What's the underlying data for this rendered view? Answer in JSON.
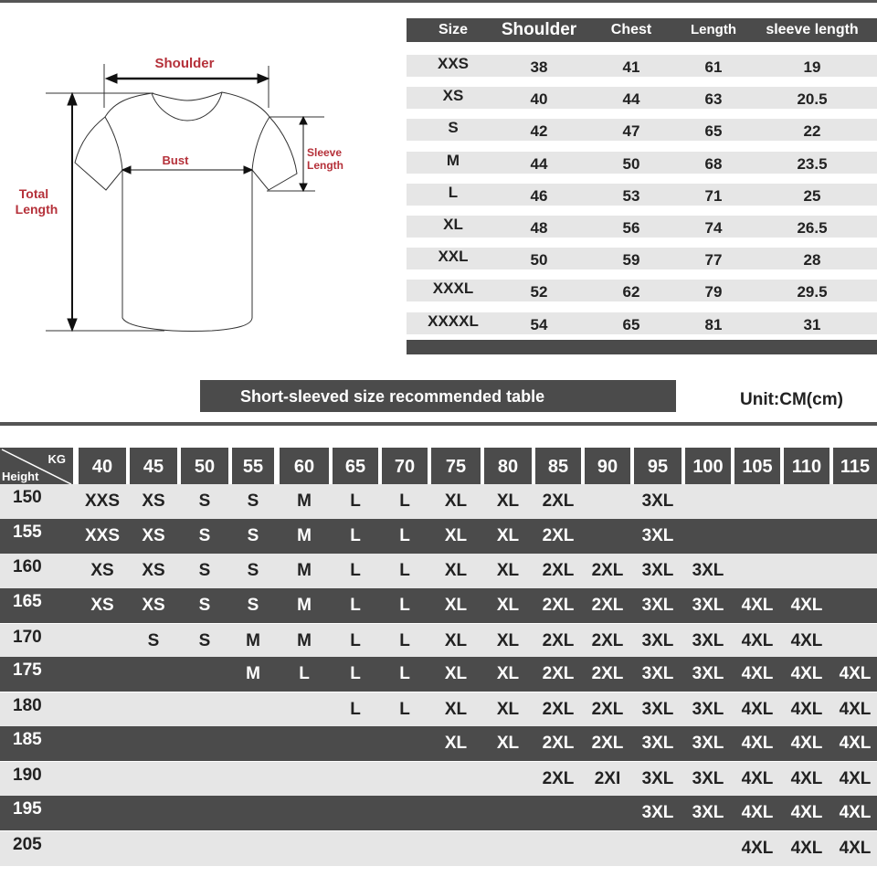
{
  "diagram": {
    "shoulder": "Shoulder",
    "bust": "Bust",
    "sleeve": [
      "Sleeve",
      "Length"
    ],
    "total": [
      "Total",
      "Length"
    ]
  },
  "size_table": {
    "headers": [
      "Size",
      "Shoulder",
      "Chest",
      "Length",
      "sleeve length"
    ],
    "rows": [
      [
        "XXS",
        "38",
        "41",
        "61",
        "19"
      ],
      [
        "XS",
        "40",
        "44",
        "63",
        "20.5"
      ],
      [
        "S",
        "42",
        "47",
        "65",
        "22"
      ],
      [
        "M",
        "44",
        "50",
        "68",
        "23.5"
      ],
      [
        "L",
        "46",
        "53",
        "71",
        "25"
      ],
      [
        "XL",
        "48",
        "56",
        "74",
        "26.5"
      ],
      [
        "XXL",
        "50",
        "59",
        "77",
        "28"
      ],
      [
        "XXXL",
        "52",
        "62",
        "79",
        "29.5"
      ],
      [
        "XXXXL",
        "54",
        "65",
        "81",
        "31"
      ]
    ]
  },
  "banner": {
    "title": "Short-sleeved size recommended table",
    "unit": "Unit:CM(cm)"
  },
  "recommend_table": {
    "corner": {
      "kg": "KG",
      "height": "Height"
    },
    "weights": [
      "40",
      "45",
      "50",
      "55",
      "60",
      "65",
      "70",
      "75",
      "80",
      "85",
      "90",
      "95",
      "100",
      "105",
      "110",
      "115"
    ],
    "rows": [
      {
        "height": "150",
        "sizes": [
          "XXS",
          "XS",
          "S",
          "S",
          "M",
          "L",
          "L",
          "XL",
          "XL",
          "2XL",
          "",
          "3XL",
          "",
          "",
          "",
          ""
        ]
      },
      {
        "height": "155",
        "sizes": [
          "XXS",
          "XS",
          "S",
          "S",
          "M",
          "L",
          "L",
          "XL",
          "XL",
          "2XL",
          "",
          "3XL",
          "",
          "",
          "",
          ""
        ]
      },
      {
        "height": "160",
        "sizes": [
          "XS",
          "XS",
          "S",
          "S",
          "M",
          "L",
          "L",
          "XL",
          "XL",
          "2XL",
          "2XL",
          "3XL",
          "3XL",
          "",
          "",
          ""
        ]
      },
      {
        "height": "165",
        "sizes": [
          "XS",
          "XS",
          "S",
          "S",
          "M",
          "L",
          "L",
          "XL",
          "XL",
          "2XL",
          "2XL",
          "3XL",
          "3XL",
          "4XL",
          "4XL",
          ""
        ]
      },
      {
        "height": "170",
        "sizes": [
          "",
          "S",
          "S",
          "M",
          "M",
          "L",
          "L",
          "XL",
          "XL",
          "2XL",
          "2XL",
          "3XL",
          "3XL",
          "4XL",
          "4XL",
          ""
        ]
      },
      {
        "height": "175",
        "sizes": [
          "",
          "",
          "",
          "M",
          "L",
          "L",
          "L",
          "XL",
          "XL",
          "2XL",
          "2XL",
          "3XL",
          "3XL",
          "4XL",
          "4XL",
          "4XL"
        ]
      },
      {
        "height": "180",
        "sizes": [
          "",
          "",
          "",
          "",
          "",
          "L",
          "L",
          "XL",
          "XL",
          "2XL",
          "2XL",
          "3XL",
          "3XL",
          "4XL",
          "4XL",
          "4XL"
        ]
      },
      {
        "height": "185",
        "sizes": [
          "",
          "",
          "",
          "",
          "",
          "",
          "",
          "XL",
          "XL",
          "2XL",
          "2XL",
          "3XL",
          "3XL",
          "4XL",
          "4XL",
          "4XL"
        ]
      },
      {
        "height": "190",
        "sizes": [
          "",
          "",
          "",
          "",
          "",
          "",
          "",
          "",
          "",
          "2XL",
          "2XI",
          "3XL",
          "3XL",
          "4XL",
          "4XL",
          "4XL"
        ]
      },
      {
        "height": "195",
        "sizes": [
          "",
          "",
          "",
          "",
          "",
          "",
          "",
          "",
          "",
          "",
          "",
          "3XL",
          "3XL",
          "4XL",
          "4XL",
          "4XL"
        ]
      },
      {
        "height": "205",
        "sizes": [
          "",
          "",
          "",
          "",
          "",
          "",
          "",
          "",
          "",
          "",
          "",
          "",
          "",
          "4XL",
          "4XL",
          "4XL"
        ]
      }
    ]
  },
  "colors": {
    "dark": "#4b4b4b",
    "light": "#e6e6e6",
    "label_red": "#b5313a"
  }
}
